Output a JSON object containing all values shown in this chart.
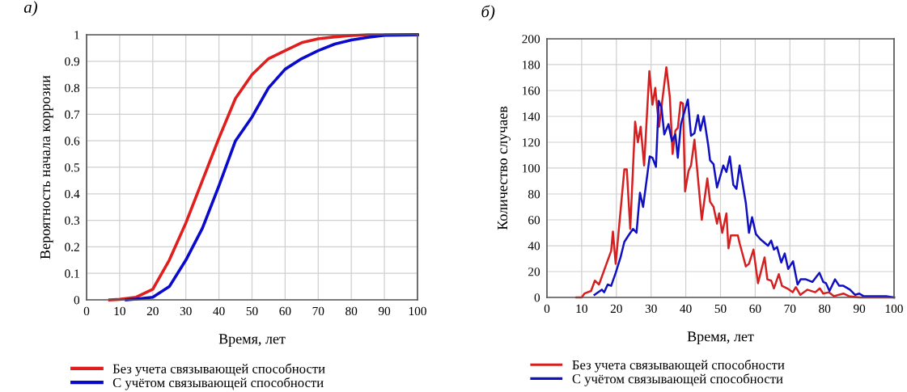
{
  "chart_data": [
    {
      "type": "line",
      "xlabel": "Время, лет",
      "ylabel": "Вероятность начала коррозии",
      "annotations": [
        "а)"
      ],
      "xlim": [
        0,
        100
      ],
      "ylim": [
        0,
        1
      ],
      "xticks": [
        0,
        10,
        20,
        30,
        40,
        50,
        60,
        70,
        80,
        90,
        100
      ],
      "yticks": [
        0,
        0.1,
        0.2,
        0.3,
        0.4,
        0.5,
        0.6,
        0.7,
        0.8,
        0.9,
        1
      ],
      "grid": true,
      "legend": "bottom",
      "series": [
        {
          "name": "Без учета связывающей способности",
          "color": "#e01e1e",
          "x": [
            7,
            10,
            15,
            20,
            25,
            30,
            35,
            40,
            45,
            50,
            55,
            60,
            65,
            70,
            75,
            80,
            85,
            90,
            100
          ],
          "values": [
            0,
            0.002,
            0.01,
            0.04,
            0.15,
            0.29,
            0.45,
            0.61,
            0.76,
            0.85,
            0.91,
            0.94,
            0.97,
            0.985,
            0.992,
            0.997,
            1,
            1,
            1
          ]
        },
        {
          "name": "С учётом связывающей способности",
          "color": "#0a0acc",
          "x": [
            12,
            15,
            20,
            25,
            30,
            35,
            40,
            45,
            50,
            55,
            60,
            65,
            70,
            75,
            80,
            85,
            90,
            100
          ],
          "values": [
            0,
            0.003,
            0.01,
            0.05,
            0.15,
            0.27,
            0.43,
            0.6,
            0.69,
            0.8,
            0.87,
            0.91,
            0.94,
            0.965,
            0.98,
            0.99,
            0.998,
            1
          ]
        }
      ]
    },
    {
      "type": "line",
      "xlabel": "Время, лет",
      "ylabel": "Количество случаев",
      "annotations": [
        "б)"
      ],
      "xlim": [
        0,
        100
      ],
      "ylim": [
        0,
        200
      ],
      "xticks": [
        0,
        10,
        20,
        30,
        40,
        50,
        60,
        70,
        80,
        90,
        100
      ],
      "yticks": [
        0,
        20,
        40,
        60,
        80,
        100,
        120,
        140,
        160,
        180,
        200
      ],
      "grid": true,
      "legend": "bottom",
      "series": [
        {
          "name": "Без учета связывающей способности",
          "color": "#d42020",
          "x": [
            8.5,
            10,
            10.8,
            12.7,
            13.8,
            15,
            18.5,
            19,
            19.8,
            21,
            22.3,
            23,
            24,
            25.4,
            26.2,
            27,
            28,
            29.5,
            30.4,
            31.2,
            32.3,
            34.4,
            35.4,
            36.2,
            37,
            37.7,
            38.5,
            39.2,
            39.8,
            40.8,
            41.5,
            42.5,
            44.6,
            46.2,
            47,
            48,
            49,
            49.6,
            50.5,
            51.7,
            52.3,
            53,
            55,
            55.5,
            56.5,
            57.3,
            58.2,
            59.5,
            60.8,
            62.7,
            63.5,
            64.6,
            65.4,
            66.8,
            67.7,
            69.2,
            70.8,
            71.7,
            73,
            75,
            77.3,
            78.6,
            79.6,
            81.2,
            82.7,
            85.4,
            87,
            90,
            100
          ],
          "values": [
            0,
            0,
            3,
            5,
            13,
            10,
            36,
            51,
            26,
            61,
            99,
            99,
            53,
            136,
            120,
            132,
            102,
            175,
            149,
            162,
            132,
            178,
            155,
            111,
            129,
            131,
            151,
            150,
            82,
            98,
            102,
            122,
            60,
            92,
            74,
            70,
            57,
            65,
            50,
            65,
            38,
            48,
            48,
            42,
            32,
            24,
            26,
            37,
            11,
            31,
            14,
            13,
            7,
            18,
            9,
            7,
            4,
            8,
            2,
            6,
            4,
            7,
            3,
            4,
            1,
            3,
            1,
            0,
            0
          ]
        },
        {
          "name": "С учётом связывающей способности",
          "color": "#1010c0",
          "x": [
            13.7,
            15.8,
            16.5,
            17.5,
            18.5,
            19.8,
            21.2,
            22.3,
            23.5,
            24.8,
            25.8,
            26.8,
            27.7,
            29.6,
            30.4,
            31.4,
            32.2,
            33,
            33.8,
            35,
            36,
            37,
            37.7,
            38.6,
            40.6,
            41.5,
            42.5,
            43.5,
            44.2,
            45.2,
            46.5,
            47,
            48,
            49,
            50.8,
            51.7,
            52.7,
            53.7,
            54.6,
            55.5,
            57.3,
            58.2,
            59.1,
            60.2,
            61.5,
            63.7,
            64.6,
            65.4,
            66.3,
            67.5,
            68.5,
            69.5,
            70.9,
            72.2,
            73.1,
            74.6,
            76.5,
            78.5,
            79.6,
            80.4,
            81.4,
            83,
            84.2,
            85.4,
            87.3,
            88.8,
            90,
            91.2,
            93,
            95.4,
            97.7,
            100
          ],
          "values": [
            2,
            6,
            4,
            10,
            9,
            19,
            31,
            43,
            48,
            53,
            50,
            81,
            70,
            109,
            108,
            101,
            152,
            147,
            126,
            134,
            121,
            126,
            108,
            134,
            153,
            125,
            127,
            141,
            129,
            140,
            117,
            106,
            103,
            85,
            102,
            97,
            109,
            87,
            84,
            102,
            73,
            50,
            62,
            49,
            45,
            40,
            44,
            37,
            39,
            27,
            34,
            22,
            28,
            10,
            14,
            14,
            12,
            19,
            12,
            11,
            5,
            14,
            9,
            9,
            6,
            2,
            3,
            1,
            1,
            1,
            1,
            0
          ]
        }
      ]
    }
  ]
}
